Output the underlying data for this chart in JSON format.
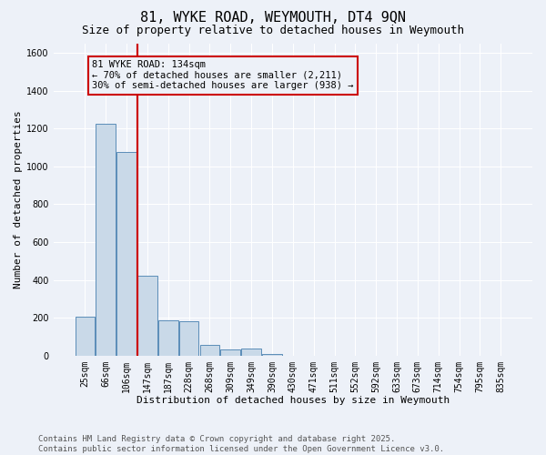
{
  "title": "81, WYKE ROAD, WEYMOUTH, DT4 9QN",
  "subtitle": "Size of property relative to detached houses in Weymouth",
  "xlabel": "Distribution of detached houses by size in Weymouth",
  "ylabel": "Number of detached properties",
  "categories": [
    "25sqm",
    "66sqm",
    "106sqm",
    "147sqm",
    "187sqm",
    "228sqm",
    "268sqm",
    "309sqm",
    "349sqm",
    "390sqm",
    "430sqm",
    "471sqm",
    "511sqm",
    "552sqm",
    "592sqm",
    "633sqm",
    "673sqm",
    "714sqm",
    "754sqm",
    "795sqm",
    "835sqm"
  ],
  "values": [
    205,
    1225,
    1075,
    420,
    185,
    180,
    55,
    30,
    35,
    10,
    0,
    0,
    0,
    0,
    0,
    0,
    0,
    0,
    0,
    0,
    0
  ],
  "bar_color": "#c9d9e8",
  "bar_edge_color": "#5b8db8",
  "vline_color": "#cc0000",
  "vline_x_index": 2.5,
  "annotation_text": "81 WYKE ROAD: 134sqm\n← 70% of detached houses are smaller (2,211)\n30% of semi-detached houses are larger (938) →",
  "annotation_box_color": "#cc0000",
  "ylim": [
    0,
    1650
  ],
  "yticks": [
    0,
    200,
    400,
    600,
    800,
    1000,
    1200,
    1400,
    1600
  ],
  "footer_line1": "Contains HM Land Registry data © Crown copyright and database right 2025.",
  "footer_line2": "Contains public sector information licensed under the Open Government Licence v3.0.",
  "background_color": "#edf1f8",
  "grid_color": "#ffffff",
  "title_fontsize": 11,
  "subtitle_fontsize": 9,
  "axis_label_fontsize": 8,
  "tick_fontsize": 7,
  "annotation_fontsize": 7.5,
  "footer_fontsize": 6.5
}
